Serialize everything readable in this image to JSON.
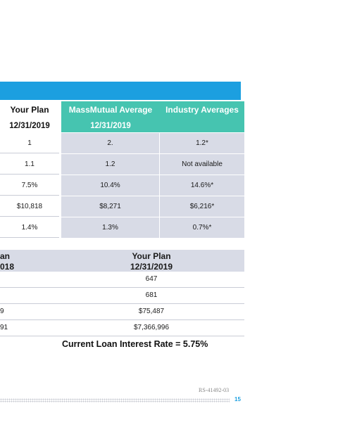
{
  "colors": {
    "banner": "#1c9fe0",
    "header_teal": "#46c4b0",
    "cell_gray": "#d8dbe6"
  },
  "comparison_table": {
    "columns": [
      {
        "title": "Your Plan",
        "subtitle": "12/31/2019"
      },
      {
        "title": "MassMutual Average",
        "subtitle": "12/31/2019"
      },
      {
        "title": "Industry Averages",
        "subtitle": ""
      }
    ],
    "rows": [
      [
        "1",
        "2.",
        "1.2*"
      ],
      [
        "1.1",
        "1.2",
        "Not available"
      ],
      [
        "7.5%",
        "10.4%",
        "14.6%*"
      ],
      [
        "$10,818",
        "$8,271",
        "$6,216*"
      ],
      [
        "1.4%",
        "1.3%",
        "0.7%*"
      ]
    ]
  },
  "plan_table": {
    "left_header": [
      "an",
      "018"
    ],
    "right_header": [
      "Your Plan",
      "12/31/2019"
    ],
    "rows": [
      [
        "",
        "647"
      ],
      [
        "",
        "681"
      ],
      [
        "9",
        "$75,487"
      ],
      [
        "91",
        "$7,366,996"
      ]
    ]
  },
  "loan_rate": "Current Loan Interest Rate = 5.75%",
  "doc_id": "RS-41492-03",
  "page_number": "15"
}
